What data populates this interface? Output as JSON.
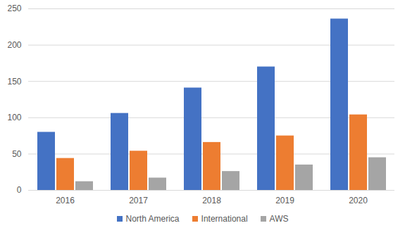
{
  "chart_data": {
    "type": "bar",
    "categories": [
      "2016",
      "2017",
      "2018",
      "2019",
      "2020"
    ],
    "series": [
      {
        "name": "North America",
        "color": "#4472c4",
        "values": [
          80,
          106,
          141,
          170,
          236
        ]
      },
      {
        "name": "International",
        "color": "#ed7d31",
        "values": [
          44,
          54,
          66,
          75,
          104
        ]
      },
      {
        "name": "AWS",
        "color": "#a5a5a5",
        "values": [
          12,
          17,
          26,
          35,
          45
        ]
      }
    ],
    "ylim": [
      0,
      250
    ],
    "yticks": [
      0,
      50,
      100,
      150,
      200,
      250
    ],
    "grid": true,
    "legend": "bottom"
  }
}
